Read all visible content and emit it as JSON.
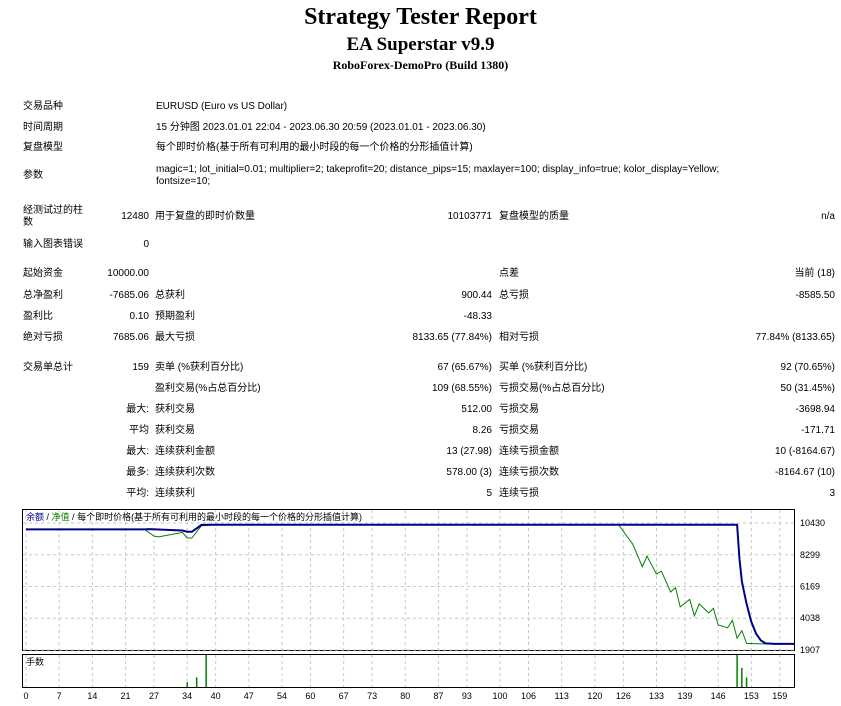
{
  "header": {
    "title": "Strategy Tester Report",
    "subtitle": "EA Superstar v9.9",
    "server": "RoboForex-DemoPro (Build 1380)"
  },
  "info": {
    "symbol_label": "交易品种",
    "symbol_value": "EURUSD (Euro vs US Dollar)",
    "period_label": "时间周期",
    "period_value": "15 分钟图 2023.01.01 22:04 - 2023.06.30 20:59 (2023.01.01 - 2023.06.30)",
    "model_label": "复盘模型",
    "model_value": "每个即时价格(基于所有可利用的最小时段的每一个价格的分形插值计算)",
    "params_label": "参数",
    "params_line1": "magic=1; lot_initial=0.01; multiplier=2; takeprofit=20; distance_pips=15; maxlayer=100; display_info=true; kolor_display=Yellow;",
    "params_line2": "fontsize=10;"
  },
  "bars": {
    "bars_label_1": "经测试过的柱",
    "bars_label_2": "数",
    "bars_value": "12480",
    "ticks_label": "用于复盘的即时价数量",
    "ticks_value": "10103771",
    "quality_label": "复盘模型的质量",
    "quality_value": "n/a",
    "errors_label": "输入图表错误",
    "errors_value": "0"
  },
  "stats": {
    "initial_deposit_label": "起始资金",
    "initial_deposit": "10000.00",
    "spread_label": "点差",
    "spread": "当前 (18)",
    "net_profit_label": "总净盈利",
    "net_profit": "-7685.06",
    "gross_profit_label": "总获利",
    "gross_profit": "900.44",
    "gross_loss_label": "总亏损",
    "gross_loss": "-8585.50",
    "profit_factor_label": "盈利比",
    "profit_factor": "0.10",
    "expected_payoff_label": "预期盈利",
    "expected_payoff": "-48.33",
    "abs_drawdown_label": "绝对亏损",
    "abs_drawdown": "7685.06",
    "max_drawdown_label": "最大亏损",
    "max_drawdown": "8133.65 (77.84%)",
    "rel_drawdown_label": "相对亏损",
    "rel_drawdown": "77.84% (8133.65)"
  },
  "trades": {
    "total_label": "交易单总计",
    "total": "159",
    "short_label": "卖单 (%获利百分比)",
    "short": "67 (65.67%)",
    "long_label": "买单 (%获利百分比)",
    "long": "92 (70.65%)",
    "profit_trades_label": "盈利交易(%占总百分比)",
    "profit_trades": "109 (68.55%)",
    "loss_trades_label": "亏损交易(%占总百分比)",
    "loss_trades": "50 (31.45%)",
    "largest_prefix": "最大:",
    "largest_profit_label": "获利交易",
    "largest_profit": "512.00",
    "largest_loss_label": "亏损交易",
    "largest_loss": "-3698.94",
    "average_prefix": "平均",
    "average_profit_label": "获利交易",
    "average_profit": "8.26",
    "average_loss_label": "亏损交易",
    "average_loss": "-171.71",
    "max_prefix": "最大:",
    "max_consec_wins_label": "连续获利金额",
    "max_consec_wins": "13 (27.98)",
    "max_consec_losses_label": "连续亏损金额",
    "max_consec_losses": "10 (-8164.67)",
    "maximal_prefix": "最多:",
    "maximal_consec_profit_label": "连续获利次数",
    "maximal_consec_profit": "578.00 (3)",
    "maximal_consec_loss_label": "连续亏损次数",
    "maximal_consec_loss": "-8164.67 (10)",
    "avg_prefix": "平均:",
    "avg_consec_wins_label": "连续获利",
    "avg_consec_wins": "5",
    "avg_consec_losses_label": "连续亏损",
    "avg_consec_losses": "3"
  },
  "chart_data": {
    "type": "line",
    "legend_balance": "余额",
    "legend_sep1": " / ",
    "legend_equity": "净值",
    "legend_sep2": " / ",
    "legend_model": "每个即时价格(基于所有可利用的最小时段的每一个价格的分形插值计算)",
    "volume_label": "手数",
    "y_ticks": [
      "10430",
      "8299",
      "6169",
      "4038",
      "1907"
    ],
    "y_tick_values": [
      10430,
      8299,
      6169,
      4038,
      1907
    ],
    "x_ticks": [
      "0",
      "7",
      "14",
      "21",
      "27",
      "34",
      "40",
      "47",
      "54",
      "60",
      "67",
      "73",
      "80",
      "87",
      "93",
      "100",
      "106",
      "113",
      "120",
      "126",
      "133",
      "139",
      "146",
      "153",
      "159"
    ],
    "x_tick_values": [
      0,
      7,
      14,
      21,
      27,
      34,
      40,
      47,
      54,
      60,
      67,
      73,
      80,
      87,
      93,
      100,
      106,
      113,
      120,
      126,
      133,
      139,
      146,
      153,
      159
    ],
    "ylim": [
      1907,
      10430
    ],
    "xlim": [
      0,
      162
    ],
    "balance_color": "#00008b",
    "equity_color": "#008000",
    "volume_color": "#008000",
    "series": [
      {
        "name": "余额",
        "x": [
          0,
          25,
          26,
          33,
          34,
          35,
          37,
          40,
          60,
          100,
          120,
          150,
          150.5,
          151,
          152,
          153,
          154,
          155,
          156,
          158,
          162
        ],
        "y": [
          10000,
          10000,
          10020,
          9930,
          9840,
          9840,
          10300,
          10315,
          10315,
          10315,
          10315,
          10315,
          8000,
          6500,
          5000,
          3800,
          3000,
          2550,
          2350,
          2315,
          2315
        ]
      },
      {
        "name": "净值",
        "x": [
          0,
          25,
          27,
          28,
          33,
          34,
          35,
          37,
          40,
          60,
          100,
          125,
          128,
          130,
          131,
          133,
          134,
          136,
          137,
          138,
          140,
          141,
          142,
          144,
          145,
          146,
          148,
          149,
          150,
          151,
          152,
          155,
          162
        ],
        "y": [
          10000,
          10000,
          9550,
          9500,
          9800,
          9420,
          9420,
          10250,
          10315,
          10315,
          10315,
          10315,
          9000,
          7500,
          8200,
          7000,
          7200,
          5800,
          6100,
          4800,
          5300,
          4200,
          5000,
          4400,
          4700,
          3600,
          3400,
          3900,
          2700,
          3200,
          2350,
          2315,
          2315
        ]
      }
    ],
    "volume": [
      {
        "x": 34,
        "v": 0.15
      },
      {
        "x": 36,
        "v": 0.3
      },
      {
        "x": 38,
        "v": 1.0
      },
      {
        "x": 150,
        "v": 1.0
      },
      {
        "x": 151,
        "v": 0.6
      },
      {
        "x": 152,
        "v": 0.3
      }
    ]
  }
}
